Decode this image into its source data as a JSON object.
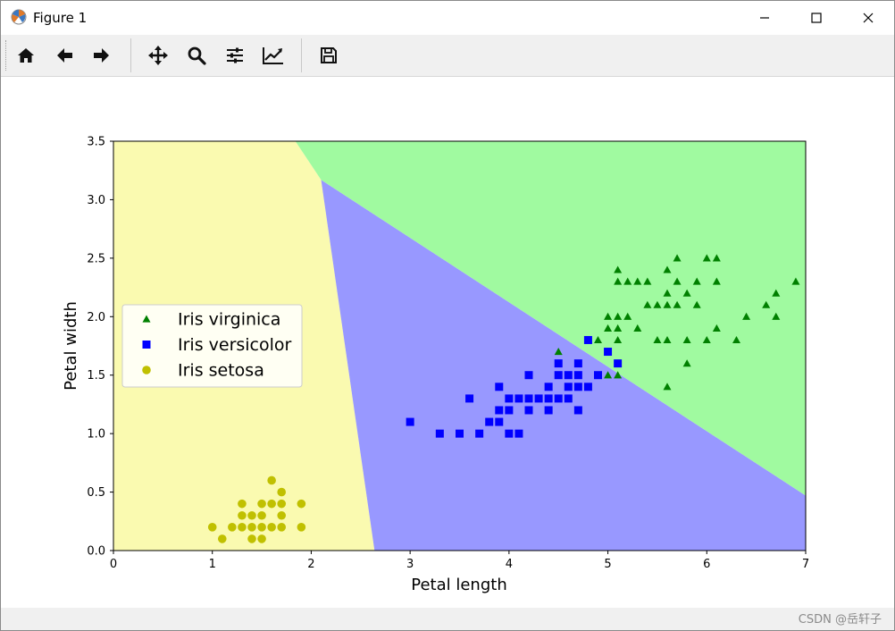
{
  "window": {
    "title": "Figure 1"
  },
  "toolbar": {
    "buttons": [
      {
        "name": "home-icon"
      },
      {
        "name": "back-arrow-icon"
      },
      {
        "name": "forward-arrow-icon"
      },
      {
        "name": "pan-icon"
      },
      {
        "name": "zoom-icon"
      },
      {
        "name": "subplots-config-icon"
      },
      {
        "name": "edit-axis-icon"
      },
      {
        "name": "save-icon"
      }
    ]
  },
  "watermark": "CSDN @岳轩子",
  "chart_data": {
    "type": "scatter",
    "xlabel": "Petal length",
    "ylabel": "Petal width",
    "xlim": [
      0,
      7
    ],
    "ylim": [
      0,
      3.5
    ],
    "xticks": [
      "0",
      "1",
      "2",
      "3",
      "4",
      "5",
      "6",
      "7"
    ],
    "yticks": [
      "0.0",
      "0.5",
      "1.0",
      "1.5",
      "2.0",
      "2.5",
      "3.0",
      "3.5"
    ],
    "grid": false,
    "legend_position": "center-left",
    "regions": [
      {
        "class": "Iris setosa",
        "color": "#fafab0"
      },
      {
        "class": "Iris versicolor",
        "color": "#9898ff"
      },
      {
        "class": "Iris virginica",
        "color": "#a0faa0"
      }
    ],
    "series": [
      {
        "name": "Iris virginica",
        "marker": "triangle",
        "color": "#008000",
        "points": [
          [
            4.5,
            1.7
          ],
          [
            4.8,
            1.8
          ],
          [
            4.9,
            1.8
          ],
          [
            5.0,
            1.5
          ],
          [
            5.0,
            2.0
          ],
          [
            5.0,
            1.9
          ],
          [
            5.1,
            1.8
          ],
          [
            5.1,
            1.9
          ],
          [
            5.1,
            2.0
          ],
          [
            5.1,
            2.3
          ],
          [
            5.1,
            2.4
          ],
          [
            5.1,
            1.5
          ],
          [
            5.2,
            2.3
          ],
          [
            5.2,
            2.0
          ],
          [
            5.3,
            2.3
          ],
          [
            5.3,
            1.9
          ],
          [
            5.4,
            2.3
          ],
          [
            5.4,
            2.1
          ],
          [
            5.5,
            2.1
          ],
          [
            5.5,
            1.8
          ],
          [
            5.6,
            2.4
          ],
          [
            5.6,
            2.2
          ],
          [
            5.6,
            2.1
          ],
          [
            5.6,
            1.8
          ],
          [
            5.6,
            1.4
          ],
          [
            5.7,
            2.5
          ],
          [
            5.7,
            2.3
          ],
          [
            5.7,
            2.1
          ],
          [
            5.8,
            2.2
          ],
          [
            5.8,
            1.8
          ],
          [
            5.8,
            1.6
          ],
          [
            5.9,
            2.3
          ],
          [
            5.9,
            2.1
          ],
          [
            6.0,
            2.5
          ],
          [
            6.0,
            1.8
          ],
          [
            6.1,
            2.5
          ],
          [
            6.1,
            2.3
          ],
          [
            6.1,
            1.9
          ],
          [
            6.3,
            1.8
          ],
          [
            6.4,
            2.0
          ],
          [
            6.6,
            2.1
          ],
          [
            6.7,
            2.2
          ],
          [
            6.7,
            2.0
          ],
          [
            6.9,
            2.3
          ]
        ]
      },
      {
        "name": "Iris versicolor",
        "marker": "square",
        "color": "#0000ff",
        "points": [
          [
            3.0,
            1.1
          ],
          [
            3.3,
            1.0
          ],
          [
            3.5,
            1.0
          ],
          [
            3.6,
            1.3
          ],
          [
            3.7,
            1.0
          ],
          [
            3.8,
            1.1
          ],
          [
            3.9,
            1.1
          ],
          [
            3.9,
            1.2
          ],
          [
            3.9,
            1.4
          ],
          [
            4.0,
            1.0
          ],
          [
            4.0,
            1.2
          ],
          [
            4.0,
            1.3
          ],
          [
            4.1,
            1.0
          ],
          [
            4.1,
            1.3
          ],
          [
            4.2,
            1.2
          ],
          [
            4.2,
            1.3
          ],
          [
            4.2,
            1.5
          ],
          [
            4.3,
            1.3
          ],
          [
            4.4,
            1.2
          ],
          [
            4.4,
            1.3
          ],
          [
            4.4,
            1.4
          ],
          [
            4.5,
            1.3
          ],
          [
            4.5,
            1.5
          ],
          [
            4.5,
            1.6
          ],
          [
            4.6,
            1.3
          ],
          [
            4.6,
            1.4
          ],
          [
            4.6,
            1.5
          ],
          [
            4.7,
            1.2
          ],
          [
            4.7,
            1.4
          ],
          [
            4.7,
            1.5
          ],
          [
            4.7,
            1.6
          ],
          [
            4.8,
            1.4
          ],
          [
            4.8,
            1.8
          ],
          [
            4.9,
            1.5
          ],
          [
            5.0,
            1.7
          ],
          [
            5.1,
            1.6
          ]
        ]
      },
      {
        "name": "Iris setosa",
        "marker": "circle",
        "color": "#c0c000",
        "points": [
          [
            1.0,
            0.2
          ],
          [
            1.1,
            0.1
          ],
          [
            1.2,
            0.2
          ],
          [
            1.3,
            0.2
          ],
          [
            1.3,
            0.3
          ],
          [
            1.3,
            0.4
          ],
          [
            1.4,
            0.1
          ],
          [
            1.4,
            0.2
          ],
          [
            1.4,
            0.3
          ],
          [
            1.5,
            0.1
          ],
          [
            1.5,
            0.2
          ],
          [
            1.5,
            0.3
          ],
          [
            1.5,
            0.4
          ],
          [
            1.6,
            0.2
          ],
          [
            1.6,
            0.4
          ],
          [
            1.6,
            0.6
          ],
          [
            1.7,
            0.2
          ],
          [
            1.7,
            0.3
          ],
          [
            1.7,
            0.4
          ],
          [
            1.7,
            0.5
          ],
          [
            1.9,
            0.2
          ],
          [
            1.9,
            0.4
          ]
        ]
      }
    ]
  }
}
